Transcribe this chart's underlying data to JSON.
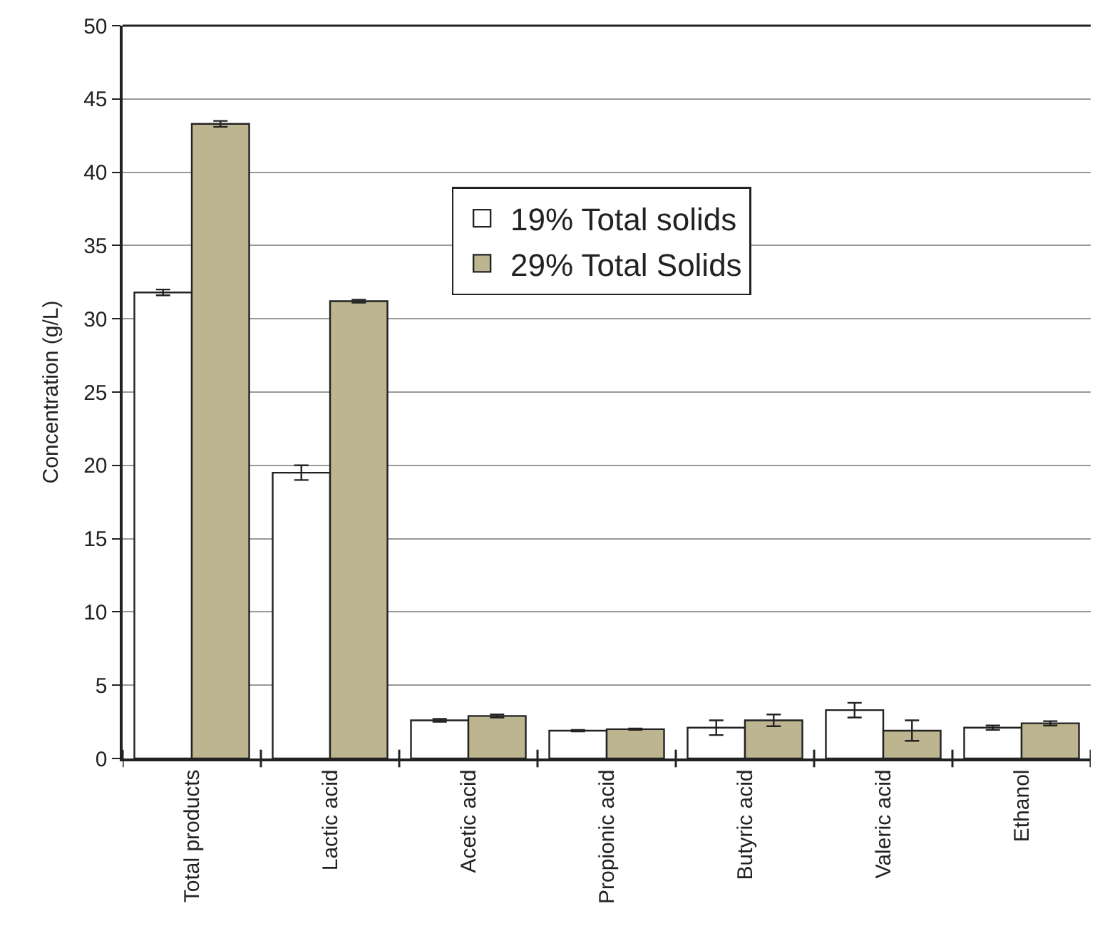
{
  "chart_data": {
    "type": "bar",
    "ylabel": "Concentration (g/L)",
    "categories": [
      "Total products",
      "Lactic acid",
      "Acetic acid",
      "Propionic acid",
      "Butyric acid",
      "Valeric acid",
      "Ethanol"
    ],
    "series": [
      {
        "name": "19% Total solids",
        "color": "#ffffff",
        "values": [
          31.8,
          19.5,
          2.6,
          1.9,
          2.1,
          3.3,
          2.1
        ],
        "errors": [
          0.2,
          0.5,
          0.1,
          0.05,
          0.5,
          0.5,
          0.15
        ]
      },
      {
        "name": "29% Total Solids",
        "color": "#bcb58f",
        "values": [
          43.3,
          31.2,
          2.9,
          2.0,
          2.6,
          1.9,
          2.4
        ],
        "errors": [
          0.2,
          0.1,
          0.1,
          0.05,
          0.4,
          0.7,
          0.15
        ]
      }
    ],
    "ylim": [
      0,
      50
    ],
    "yticks": [
      0,
      5,
      10,
      15,
      20,
      25,
      30,
      35,
      40,
      45,
      50
    ],
    "grid": "y",
    "legend": "top right"
  }
}
